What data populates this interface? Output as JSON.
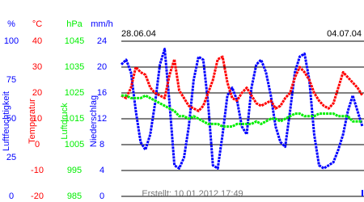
{
  "chart_data": {
    "type": "line",
    "start_label": "28.06.04",
    "end_label": "04.07.04",
    "created": "Erstellt: 10.01.2012 17:49",
    "grid": true,
    "axes": [
      {
        "unit": "%",
        "name": "Luftfeuchtigkeit",
        "color": "#0000ff",
        "mark": "line",
        "ylim": [
          0,
          100
        ],
        "yticks": [
          100,
          75,
          50,
          25,
          0
        ],
        "values": [
          85,
          88,
          80,
          55,
          35,
          30,
          40,
          60,
          85,
          95,
          60,
          20,
          18,
          25,
          45,
          75,
          90,
          88,
          60,
          20,
          18,
          40,
          65,
          70,
          62,
          45,
          40,
          70,
          85,
          88,
          80,
          65,
          45,
          35,
          32,
          55,
          80,
          90,
          92,
          75,
          40,
          20,
          18,
          20,
          22,
          30,
          40,
          55,
          65,
          55,
          45
        ]
      },
      {
        "unit": "°C",
        "name": "Temperatur",
        "color": "#ff0000",
        "mark": "line",
        "ylim": [
          -20,
          40
        ],
        "yticks": [
          40,
          30,
          20,
          10,
          0,
          -10,
          -20
        ],
        "values": [
          19,
          18,
          22,
          30,
          28,
          27,
          22,
          20,
          19,
          18,
          27,
          33,
          21,
          18,
          15,
          14,
          13,
          15,
          20,
          25,
          33,
          34,
          24,
          18,
          17,
          20,
          22,
          19,
          16,
          15,
          16,
          17,
          14,
          15,
          18,
          20,
          26,
          30,
          28,
          25,
          20,
          17,
          15,
          14,
          16,
          22,
          28,
          26,
          24,
          22,
          19
        ]
      },
      {
        "unit": "hPa",
        "name": "Luftdruck",
        "color": "#00ee00",
        "mark": "line",
        "ylim": [
          985,
          1045
        ],
        "yticks": [
          1045,
          1035,
          1025,
          1015,
          1005,
          995,
          985
        ],
        "values": [
          1024,
          1024,
          1023,
          1023,
          1023,
          1024,
          1023,
          1022,
          1021,
          1020,
          1019,
          1018,
          1016,
          1016,
          1015,
          1016,
          1015,
          1014,
          1013,
          1013,
          1013,
          1012,
          1012,
          1012,
          1013,
          1013,
          1013,
          1013,
          1014,
          1013,
          1014,
          1015,
          1015,
          1014,
          1015,
          1016,
          1017,
          1017,
          1016,
          1016,
          1016,
          1017,
          1017,
          1017,
          1017,
          1016,
          1016,
          1016,
          1014,
          1014,
          1014
        ]
      },
      {
        "unit": "mm/h",
        "name": "Niederschlag",
        "color": "#0000ff",
        "mark": "bar",
        "ylim": [
          0,
          24
        ],
        "yticks": [
          24,
          20,
          16,
          12,
          8,
          4,
          0
        ],
        "values": [
          0,
          0,
          0,
          0,
          0,
          0,
          0,
          0,
          0,
          0,
          0,
          0,
          0,
          0,
          0,
          0,
          0,
          0,
          0,
          0,
          0,
          0,
          0,
          0,
          0,
          0,
          0,
          0,
          0,
          0,
          0,
          0,
          0,
          0,
          0,
          0,
          0,
          0,
          0,
          0,
          0,
          0,
          0,
          0,
          0,
          0,
          0,
          0,
          0,
          0,
          1
        ]
      }
    ]
  }
}
